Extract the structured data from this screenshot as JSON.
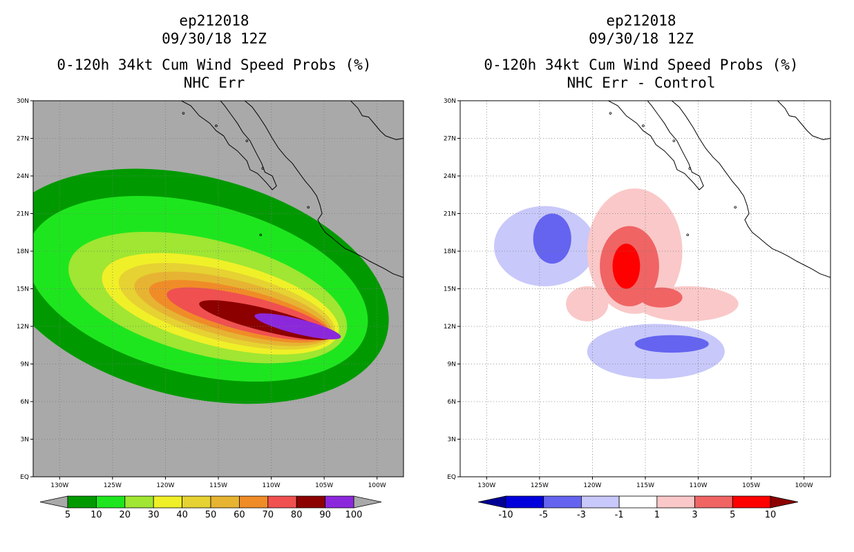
{
  "chart_data": [
    {
      "type": "heatmap",
      "panel": "left",
      "title_lines": [
        "ep212018",
        "09/30/18 12Z",
        "0-120h 34kt Cum Wind Speed Probs (%)",
        "NHC Err"
      ],
      "x_ticks": [
        "130W",
        "125W",
        "120W",
        "115W",
        "110W",
        "105W",
        "100W"
      ],
      "y_ticks": [
        "EQ",
        "3N",
        "6N",
        "9N",
        "12N",
        "15N",
        "18N",
        "21N",
        "24N",
        "27N",
        "30N"
      ],
      "lon_range": [
        -132.5,
        -97.5
      ],
      "lat_range": [
        0,
        30
      ],
      "background_color": "#a9a9a9",
      "legend": {
        "labels": [
          "5",
          "10",
          "20",
          "30",
          "40",
          "50",
          "60",
          "70",
          "80",
          "90",
          "100"
        ],
        "colors": [
          "#009a00",
          "#1ee61e",
          "#a0e632",
          "#f0f028",
          "#e6d232",
          "#e6b432",
          "#f08c28",
          "#f05050",
          "#8c0000",
          "#8c28dc"
        ],
        "under_color": "#a9a9a9",
        "over_color": "#a9a9a9"
      },
      "contours": [
        {
          "level": "5-10",
          "color": "#009a00",
          "center_lon": -117.5,
          "center_lat": 15.2,
          "rx_deg": 19,
          "ry_deg": 8.8
        },
        {
          "level": "10-20",
          "color": "#1ee61e",
          "center_lon": -117.0,
          "center_lat": 15.0,
          "rx_deg": 16.5,
          "ry_deg": 6.8
        },
        {
          "level": "20-30",
          "color": "#a0e632",
          "center_lon": -116.0,
          "center_lat": 14.3,
          "rx_deg": 13.5,
          "ry_deg": 4.6
        },
        {
          "level": "30-40",
          "color": "#f0f028",
          "center_lon": -114.8,
          "center_lat": 13.8,
          "rx_deg": 11.5,
          "ry_deg": 3.4
        },
        {
          "level": "40-50",
          "color": "#e6d232",
          "center_lon": -114.2,
          "center_lat": 13.6,
          "rx_deg": 10.5,
          "ry_deg": 2.8
        },
        {
          "level": "50-60",
          "color": "#e6b432",
          "center_lon": -113.6,
          "center_lat": 13.4,
          "rx_deg": 9.6,
          "ry_deg": 2.3
        },
        {
          "level": "60-70",
          "color": "#f08c28",
          "center_lon": -113.0,
          "center_lat": 13.2,
          "rx_deg": 8.8,
          "ry_deg": 1.8
        },
        {
          "level": "70-80",
          "color": "#f05050",
          "center_lon": -112.2,
          "center_lat": 13.0,
          "rx_deg": 7.9,
          "ry_deg": 1.4
        },
        {
          "level": "80-90",
          "color": "#8c0000",
          "center_lon": -110.5,
          "center_lat": 12.5,
          "rx_deg": 6.5,
          "ry_deg": 0.9
        },
        {
          "level": "90-100",
          "color": "#8c28dc",
          "center_lon": -107.5,
          "center_lat": 12.0,
          "rx_deg": 4.2,
          "ry_deg": 0.6
        }
      ]
    },
    {
      "type": "heatmap",
      "panel": "right",
      "title_lines": [
        "ep212018",
        "09/30/18 12Z",
        "0-120h 34kt Cum Wind Speed Probs (%)",
        "NHC Err - Control"
      ],
      "x_ticks": [
        "130W",
        "125W",
        "120W",
        "115W",
        "110W",
        "105W",
        "100W"
      ],
      "y_ticks": [
        "EQ",
        "3N",
        "6N",
        "9N",
        "12N",
        "15N",
        "18N",
        "21N",
        "24N",
        "27N",
        "30N"
      ],
      "lon_range": [
        -132.5,
        -97.5
      ],
      "lat_range": [
        0,
        30
      ],
      "background_color": "#ffffff",
      "legend": {
        "labels": [
          "-10",
          "-5",
          "-3",
          "-1",
          "1",
          "3",
          "5",
          "10"
        ],
        "colors": [
          "#0000dc",
          "#6464f0",
          "#c8c8fa",
          "#ffffff",
          "#fac8c8",
          "#f06464",
          "#ff0000"
        ],
        "under_color": "#000096",
        "over_color": "#8c0000"
      },
      "blobs": [
        {
          "value": "-3 to -1",
          "color": "#c8c8fa",
          "center_lon": -124.5,
          "center_lat": 18.4,
          "rx_deg": 4.8,
          "ry_deg": 3.2
        },
        {
          "value": "-5 to -3",
          "color": "#6464f0",
          "center_lon": -123.8,
          "center_lat": 19.0,
          "rx_deg": 1.8,
          "ry_deg": 2.0
        },
        {
          "value": "-3 to -1",
          "color": "#c8c8fa",
          "center_lon": -114.0,
          "center_lat": 10.0,
          "rx_deg": 6.5,
          "ry_deg": 2.2
        },
        {
          "value": "-5 to -3",
          "color": "#6464f0",
          "center_lon": -112.5,
          "center_lat": 10.6,
          "rx_deg": 3.5,
          "ry_deg": 0.7
        },
        {
          "value": "1 to 3",
          "color": "#fac8c8",
          "center_lon": -116.0,
          "center_lat": 18.0,
          "rx_deg": 4.5,
          "ry_deg": 5.0
        },
        {
          "value": "1 to 3",
          "color": "#fac8c8",
          "center_lon": -111.0,
          "center_lat": 13.8,
          "rx_deg": 4.8,
          "ry_deg": 1.4
        },
        {
          "value": "1 to 3",
          "color": "#fac8c8",
          "center_lon": -120.5,
          "center_lat": 13.8,
          "rx_deg": 2.0,
          "ry_deg": 1.4
        },
        {
          "value": "3 to 5",
          "color": "#f06464",
          "center_lon": -116.5,
          "center_lat": 16.8,
          "rx_deg": 2.8,
          "ry_deg": 3.2
        },
        {
          "value": "3 to 5",
          "color": "#f06464",
          "center_lon": -113.5,
          "center_lat": 14.3,
          "rx_deg": 2.0,
          "ry_deg": 0.8
        },
        {
          "value": "5 to 10",
          "color": "#ff0000",
          "center_lon": -116.8,
          "center_lat": 16.8,
          "rx_deg": 1.3,
          "ry_deg": 1.8
        }
      ]
    }
  ]
}
